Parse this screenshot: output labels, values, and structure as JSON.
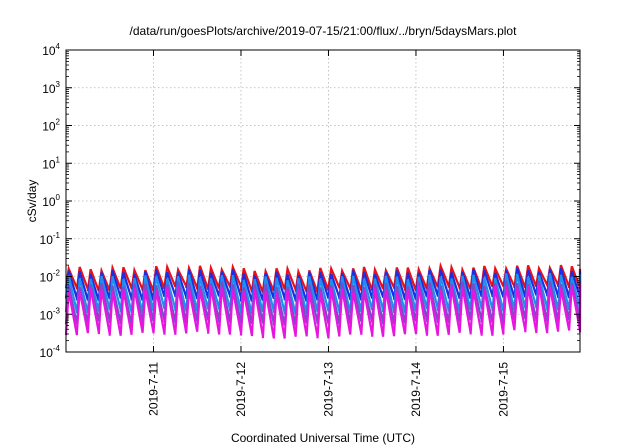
{
  "chart_data": {
    "type": "line",
    "title": "/data/run/goesPlots/archive/2019-07-15/21:00/flux/../bryn/5daysMars.plot",
    "xlabel": "Coordinated Universal Time (UTC)",
    "ylabel": "cSv/day",
    "yscale": "log",
    "ylim": [
      0.0001,
      10000
    ],
    "xlim": [
      "2019-07-10T00:00",
      "2019-07-15T21:00"
    ],
    "y_ticks": [
      {
        "base": "10",
        "exp": "-4"
      },
      {
        "base": "10",
        "exp": "-3"
      },
      {
        "base": "10",
        "exp": "-2"
      },
      {
        "base": "10",
        "exp": "-1"
      },
      {
        "base": "10",
        "exp": "0"
      },
      {
        "base": "10",
        "exp": "1"
      },
      {
        "base": "10",
        "exp": "2"
      },
      {
        "base": "10",
        "exp": "3"
      },
      {
        "base": "10",
        "exp": "4"
      }
    ],
    "x_ticks": [
      "2019-7-11",
      "2019-7-12",
      "2019-7-13",
      "2019-7-14",
      "2019-7-15"
    ],
    "x_tick_dates": [
      "2019-07-11",
      "2019-07-12",
      "2019-07-13",
      "2019-07-14",
      "2019-07-15"
    ],
    "grid": true,
    "sawtooth_period_hours": 3,
    "series": [
      {
        "color": "#e8101a",
        "peak": [
          0.016,
          0.017,
          0.015,
          0.016,
          0.017,
          0.018
        ],
        "trough": [
          0.0045,
          0.005,
          0.0042,
          0.0046,
          0.005,
          0.0055
        ]
      },
      {
        "color": "#1d2ee0",
        "peak": [
          0.013,
          0.014,
          0.012,
          0.013,
          0.014,
          0.015
        ],
        "trough": [
          0.0025,
          0.0028,
          0.0024,
          0.0026,
          0.0028,
          0.003
        ]
      },
      {
        "color": "#1e8ef0",
        "peak": [
          0.0095,
          0.01,
          0.009,
          0.0095,
          0.01,
          0.011
        ],
        "trough": [
          0.0012,
          0.0013,
          0.0011,
          0.0012,
          0.0013,
          0.0014
        ]
      },
      {
        "color": "#7a4bc8",
        "peak": [
          0.006,
          0.0065,
          0.0058,
          0.006,
          0.0065,
          0.007
        ],
        "trough": [
          0.0006,
          0.00065,
          0.00055,
          0.0006,
          0.00065,
          0.0007
        ]
      },
      {
        "color": "#e616e0",
        "peak": [
          0.0045,
          0.005,
          0.0042,
          0.0045,
          0.005,
          0.0055
        ],
        "trough": [
          0.0003,
          0.00032,
          0.00025,
          0.00028,
          0.0003,
          0.00035
        ]
      }
    ]
  }
}
